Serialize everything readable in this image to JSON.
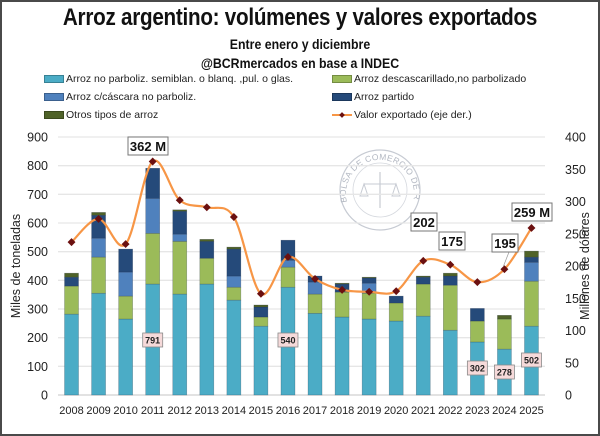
{
  "header": {
    "title": "Arroz argentino: volúmenes y valores exportados",
    "subtitle": "Entre enero y diciembre",
    "source": "@BCRmercados en base a INDEC"
  },
  "watermark": "BOLSA DE COMERCIO DE ROSARIO",
  "colors": {
    "no_parboliz": "#4bacc6",
    "descascarillado": "#9bbb59",
    "cascara": "#4f81bd",
    "partido": "#254a7a",
    "otros": "#4f6228",
    "line": "#f79646",
    "marker": "#6b1010",
    "grid": "#e6e6e6"
  },
  "chart_data": {
    "type": "bar",
    "stacked": true,
    "title": "Arroz argentino: volúmenes y valores exportados",
    "subtitle": "Entre enero y diciembre",
    "xlabel": "",
    "ylabel": "Miles de toneladas",
    "y2label": "Millones de dólares",
    "ylim": [
      0,
      900
    ],
    "y2lim": [
      0,
      400
    ],
    "yticks": [
      0,
      100,
      200,
      300,
      400,
      500,
      600,
      700,
      800,
      900
    ],
    "y2ticks": [
      0,
      50,
      100,
      150,
      200,
      250,
      300,
      350,
      400
    ],
    "grid": true,
    "legend_position": "top",
    "categories": [
      "2008",
      "2009",
      "2010",
      "2011",
      "2012",
      "2013",
      "2014",
      "2015",
      "2016",
      "2017",
      "2018",
      "2019",
      "2020",
      "2021",
      "2022",
      "2023",
      "2024",
      "2025"
    ],
    "series": [
      {
        "key": "no_parboliz",
        "name": "Arroz no parboliz. semiblan. o blanq. ,pul. o glas.",
        "values": [
          282,
          355,
          265,
          387,
          352,
          387,
          331,
          240,
          376,
          285,
          272,
          265,
          258,
          275,
          226,
          185,
          160,
          240
        ]
      },
      {
        "key": "descascarillado",
        "name": "Arroz descascarillado,no parbolizado",
        "values": [
          98,
          126,
          80,
          177,
          184,
          90,
          45,
          32,
          70,
          67,
          87,
          90,
          63,
          112,
          157,
          73,
          105,
          157
        ]
      },
      {
        "key": "cascara",
        "name": "Arroz c/cáscara no parboliz.",
        "values": [
          0,
          66,
          84,
          122,
          25,
          0,
          39,
          0,
          24,
          42,
          0,
          35,
          0,
          0,
          0,
          0,
          0,
          66
        ]
      },
      {
        "key": "partido",
        "name": "Arroz partido",
        "values": [
          31,
          80,
          80,
          105,
          80,
          59,
          94,
          35,
          70,
          21,
          28,
          18,
          24,
          24,
          32,
          44,
          0,
          18
        ]
      },
      {
        "key": "otros",
        "name": "Otros tipos de arroz",
        "values": [
          14,
          10,
          0,
          0,
          5,
          7,
          7,
          7,
          0,
          0,
          3,
          3,
          0,
          4,
          10,
          0,
          13,
          21
        ]
      }
    ],
    "line": {
      "name": "Valor exportado (eje der.)",
      "axis": "right",
      "values": [
        237,
        273,
        234,
        362,
        302,
        291,
        276,
        157,
        214,
        180,
        163,
        160,
        161,
        208,
        202,
        175,
        195,
        259
      ]
    },
    "bar_totals_labels": [
      {
        "year": "2011",
        "text": "791"
      },
      {
        "year": "2016",
        "text": "540"
      },
      {
        "year": "2023",
        "text": "302"
      },
      {
        "year": "2024",
        "text": "278"
      },
      {
        "year": "2025",
        "text": "502"
      }
    ],
    "line_labels": [
      {
        "year": "2011",
        "text": "362 M"
      },
      {
        "year": "2022",
        "text": "202"
      },
      {
        "year": "2023",
        "text": "175"
      },
      {
        "year": "2024",
        "text": "195"
      },
      {
        "year": "2025",
        "text": "259 M"
      }
    ]
  }
}
